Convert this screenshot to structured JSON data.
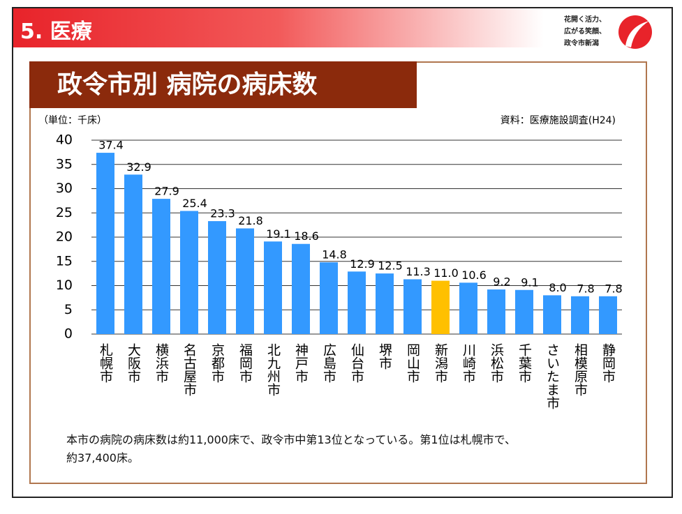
{
  "header": {
    "section": "5. 医療",
    "logo_lines": [
      "花開く活力、",
      "広がる笑顔、",
      "政令市新潟"
    ]
  },
  "chart_data": {
    "type": "bar",
    "title": "政令市別 病院の病床数",
    "unit_label": "（単位：千床）",
    "source": "資料：医療施設調査(H24)",
    "categories": [
      "札幌市",
      "大阪市",
      "横浜市",
      "名古屋市",
      "京都市",
      "福岡市",
      "北九州市",
      "神戸市",
      "広島市",
      "仙台市",
      "堺市",
      "岡山市",
      "新潟市",
      "川崎市",
      "浜松市",
      "千葉市",
      "さいたま市",
      "相模原市",
      "静岡市"
    ],
    "values": [
      37.4,
      32.9,
      27.9,
      25.4,
      23.3,
      21.8,
      19.1,
      18.6,
      14.8,
      12.9,
      12.5,
      11.3,
      11.0,
      10.6,
      9.2,
      9.1,
      8.0,
      7.8,
      7.8
    ],
    "value_labels": [
      "37.4",
      "32.9",
      "27.9",
      "25.4",
      "23.3",
      "21.8",
      "19.1",
      "18.6",
      "14.8",
      "12.9",
      "12.5",
      "11.3",
      "11.0",
      "10.6",
      "9.2",
      "9.1",
      "8.0",
      "7.8",
      "7.8"
    ],
    "colors": [
      "#3399ff",
      "#3399ff",
      "#3399ff",
      "#3399ff",
      "#3399ff",
      "#3399ff",
      "#3399ff",
      "#3399ff",
      "#3399ff",
      "#3399ff",
      "#3399ff",
      "#3399ff",
      "#ffc000",
      "#3399ff",
      "#3399ff",
      "#3399ff",
      "#3399ff",
      "#3399ff",
      "#3399ff"
    ],
    "ylim": [
      0,
      40
    ],
    "yticks": [
      0,
      5,
      10,
      15,
      20,
      25,
      30,
      35,
      40
    ],
    "grid": true
  },
  "note": [
    "本市の病院の病床数は約11,000床で、政令市中第13位となっている。第1位は札幌市で、",
    "約37,400床。"
  ]
}
